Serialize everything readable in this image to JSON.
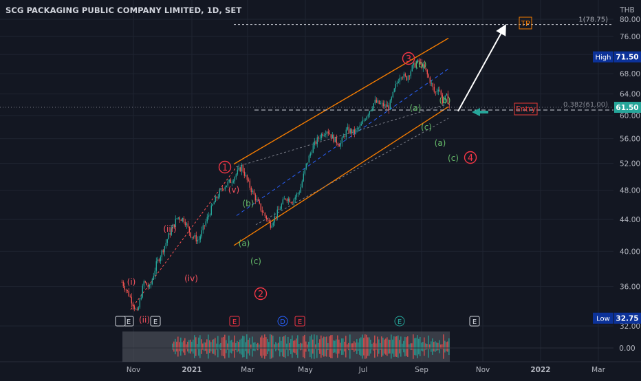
{
  "chart_data": {
    "type": "candlestick",
    "title": "SCG PACKAGING PUBLIC COMPANY LIMITED, 1D, SET",
    "currency": "THB",
    "y_axis": {
      "scale": "log",
      "ticks": [
        "80.00",
        "76.00",
        "72.00",
        "68.00",
        "64.00",
        "60.00",
        "56.00",
        "52.00",
        "48.00",
        "44.00",
        "40.00",
        "36.00",
        "32.00"
      ],
      "range": [
        32,
        81
      ]
    },
    "x_axis": {
      "ticks": [
        "Nov",
        "2021",
        "Mar",
        "May",
        "Jul",
        "Sep",
        "Nov",
        "2022",
        "Mar"
      ]
    },
    "price_labels": {
      "high": {
        "label": "High",
        "value": "71.50"
      },
      "last": {
        "value": "61.50"
      },
      "low": {
        "label": "Low",
        "value": "32.75"
      }
    },
    "levels": [
      {
        "label": "1(78.75)",
        "value": 78.75
      },
      {
        "label": "0.382(61.00)",
        "value": 61.0
      }
    ],
    "wave_labels": {
      "primary": [
        "1",
        "2",
        "3",
        "4"
      ],
      "minor": [
        "(i)",
        "(ii)",
        "(iii)",
        "(iv)",
        "(v)"
      ],
      "sub": [
        "(a)",
        "(b)",
        "(c)",
        "(a)",
        "(b)",
        "(c)",
        "(a)",
        "(b)",
        "(c)"
      ]
    },
    "annotations": {
      "entry": "Entry",
      "tp": "TP"
    },
    "events": [
      "E",
      "E",
      "E",
      "D",
      "E",
      "E",
      "E"
    ],
    "price_path": [
      [
        "2020-10-20",
        36.5
      ],
      [
        "2020-10-28",
        35.0
      ],
      [
        "2020-11-05",
        33.2
      ],
      [
        "2020-11-12",
        36.5
      ],
      [
        "2020-11-18",
        35.8
      ],
      [
        "2020-11-25",
        38.5
      ],
      [
        "2020-12-03",
        40.5
      ],
      [
        "2020-12-10",
        42.5
      ],
      [
        "2020-12-17",
        44.3
      ],
      [
        "2020-12-24",
        44.0
      ],
      [
        "2020-12-31",
        42.0
      ],
      [
        "2021-01-08",
        41.3
      ],
      [
        "2021-01-15",
        43.5
      ],
      [
        "2021-01-25",
        46.5
      ],
      [
        "2021-02-03",
        48.5
      ],
      [
        "2021-02-12",
        49.5
      ],
      [
        "2021-02-22",
        51.5
      ],
      [
        "2021-03-01",
        49.0
      ],
      [
        "2021-03-08",
        47.0
      ],
      [
        "2021-03-15",
        45.2
      ],
      [
        "2021-03-24",
        43.3
      ],
      [
        "2021-04-01",
        45.0
      ],
      [
        "2021-04-09",
        47.0
      ],
      [
        "2021-04-16",
        46.5
      ],
      [
        "2021-04-24",
        48.0
      ],
      [
        "2021-04-30",
        51.5
      ],
      [
        "2021-05-07",
        54.5
      ],
      [
        "2021-05-15",
        56.5
      ],
      [
        "2021-05-22",
        57.5
      ],
      [
        "2021-05-29",
        56.0
      ],
      [
        "2021-06-05",
        55.0
      ],
      [
        "2021-06-12",
        57.5
      ],
      [
        "2021-06-19",
        57.0
      ],
      [
        "2021-06-26",
        58.0
      ],
      [
        "2021-07-04",
        60.5
      ],
      [
        "2021-07-11",
        62.5
      ],
      [
        "2021-07-18",
        62.0
      ],
      [
        "2021-07-26",
        61.5
      ],
      [
        "2021-08-02",
        65.5
      ],
      [
        "2021-08-07",
        68.0
      ],
      [
        "2021-08-13",
        67.0
      ],
      [
        "2021-08-20",
        69.5
      ],
      [
        "2021-08-26",
        70.5
      ],
      [
        "2021-09-01",
        69.0
      ],
      [
        "2021-09-07",
        66.5
      ],
      [
        "2021-09-12",
        64.0
      ],
      [
        "2021-09-16",
        65.5
      ],
      [
        "2021-09-20",
        62.5
      ],
      [
        "2021-09-24",
        63.5
      ],
      [
        "2021-09-28",
        61.5
      ]
    ],
    "grid": true,
    "legend": "none"
  }
}
